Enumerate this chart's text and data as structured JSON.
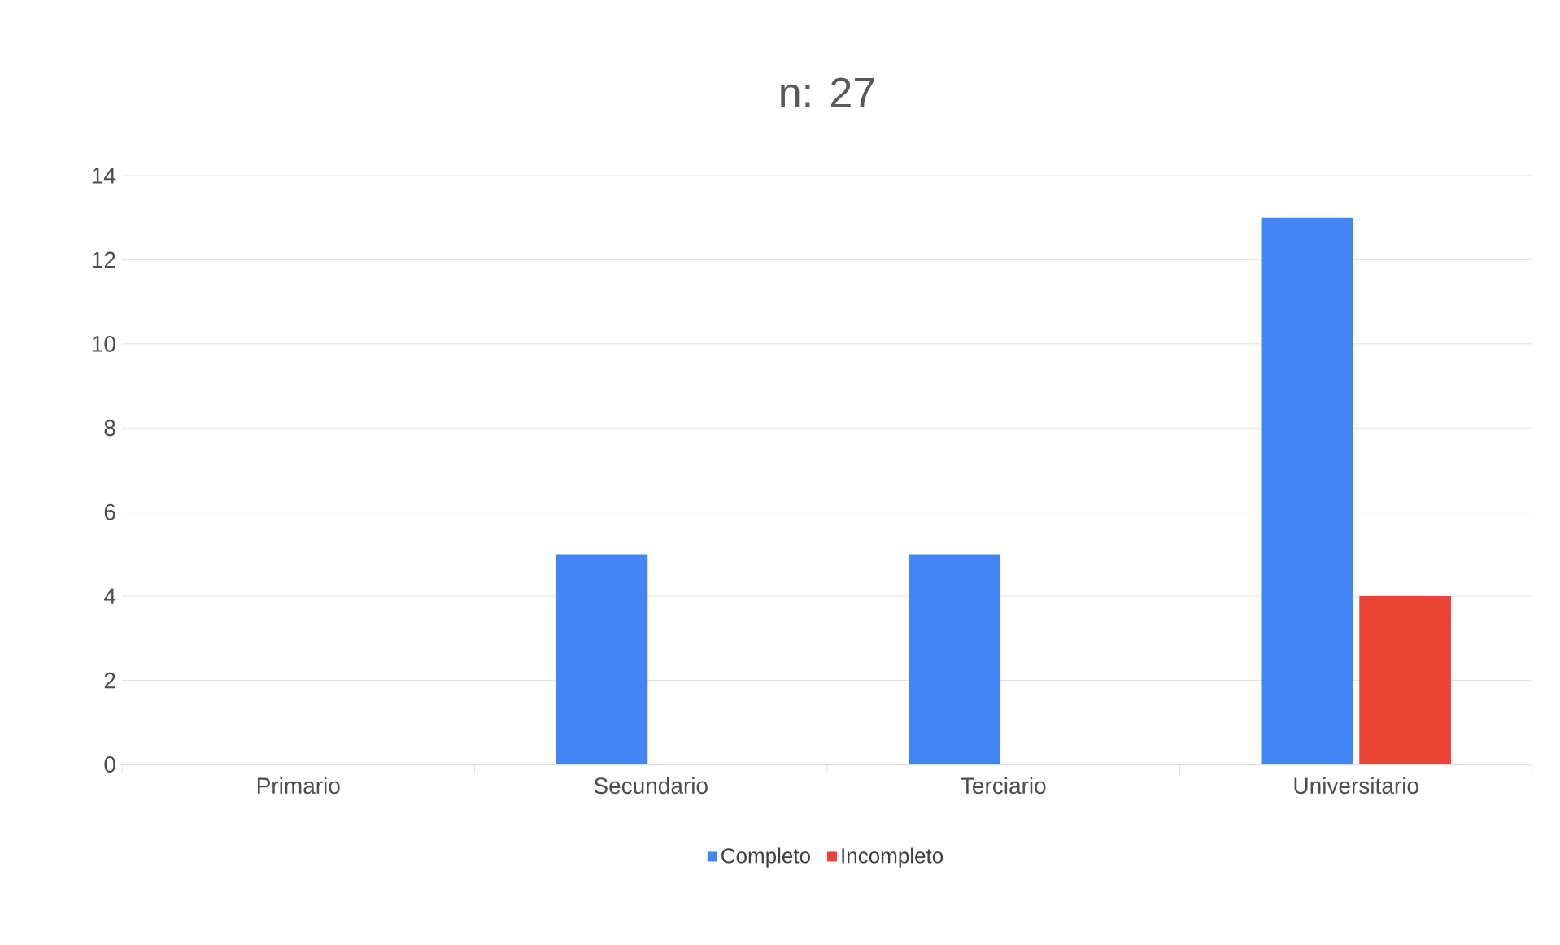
{
  "chart_data": {
    "type": "bar",
    "title": "n: 27",
    "categories": [
      "Primario",
      "Secundario",
      "Terciario",
      "Universitario"
    ],
    "series": [
      {
        "name": "Completo",
        "color": "#4285f4",
        "values": [
          0,
          5,
          5,
          13
        ]
      },
      {
        "name": "Incompleto",
        "color": "#ea4335",
        "values": [
          0,
          0,
          0,
          4
        ]
      }
    ],
    "ylim": [
      0,
      14
    ],
    "yticks": [
      0,
      2,
      4,
      6,
      8,
      10,
      12,
      14
    ],
    "grid": "y",
    "legend": "bottom"
  }
}
